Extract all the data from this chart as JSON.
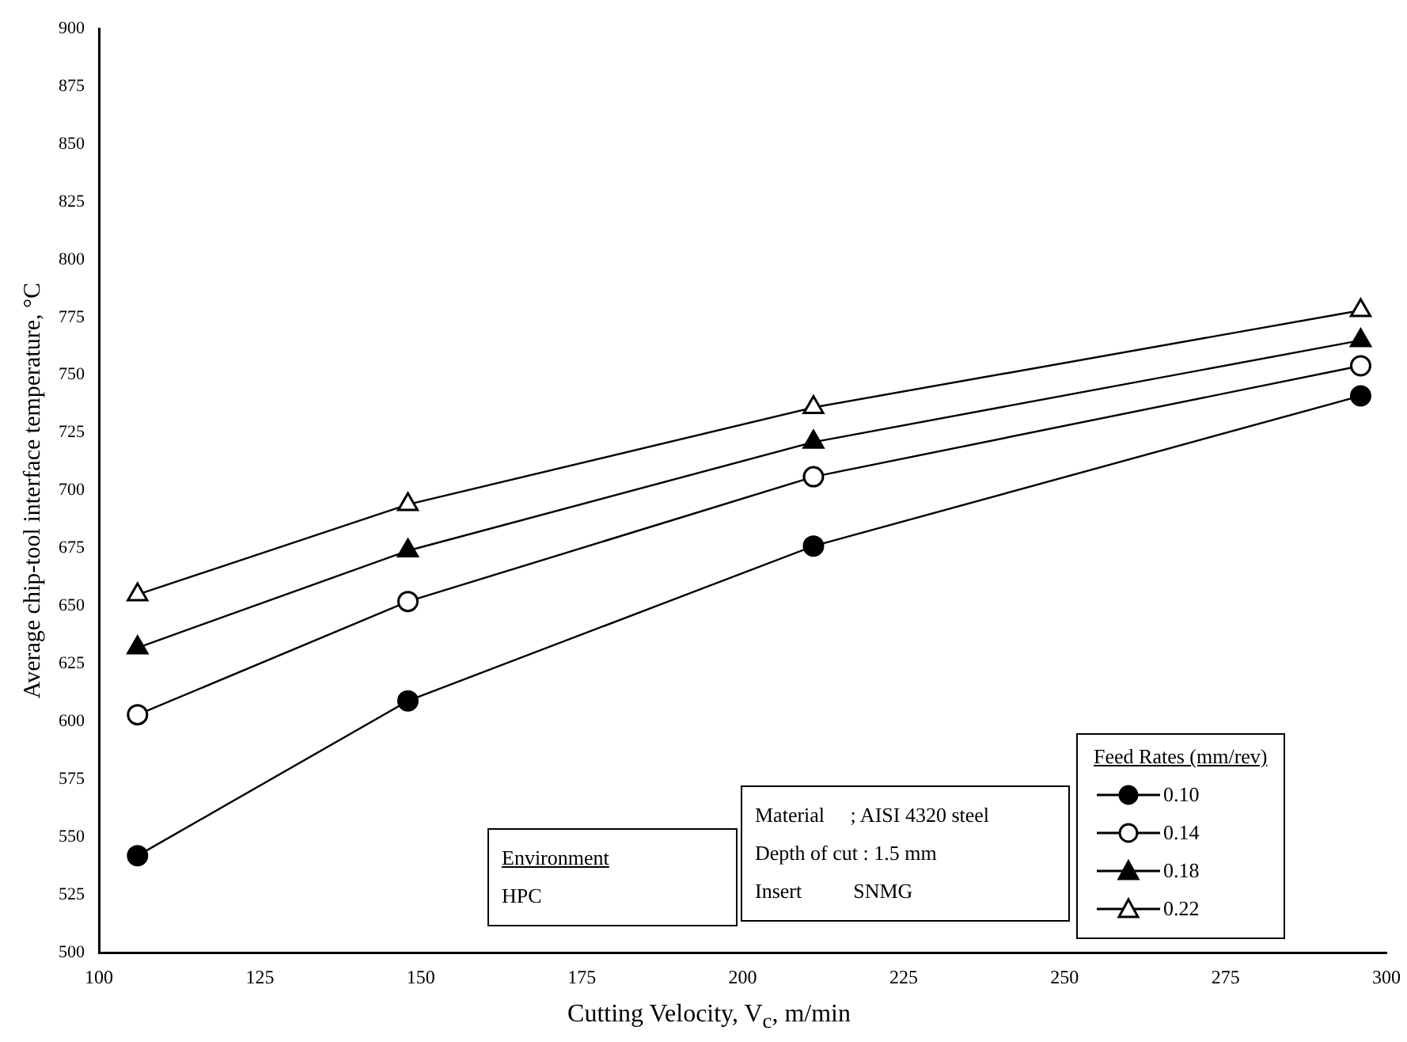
{
  "chart_data": {
    "type": "line",
    "xlabel": "Cutting Velocity, V$_{c}$, m/min",
    "ylabel": "Average chip-tool interface temperature, °C",
    "legend_title": "Feed Rates (mm/rev)",
    "legend": "bottom right",
    "grid": false,
    "line_style": "solid",
    "x": [
      106,
      148,
      211,
      296
    ],
    "xlim": [
      100,
      300
    ],
    "xticks": [
      100,
      125,
      150,
      175,
      200,
      225,
      250,
      275,
      300
    ],
    "ylim": [
      500,
      900
    ],
    "yticks": [
      500,
      525,
      550,
      575,
      600,
      625,
      650,
      675,
      700,
      725,
      750,
      775,
      800,
      825,
      850,
      875,
      900
    ],
    "series": [
      {
        "name": "0.10",
        "color": "#000000",
        "marker": "circle",
        "values": [
          542,
          609,
          676,
          741
        ]
      },
      {
        "name": "0.14",
        "color": "#000000",
        "marker": "circle-open",
        "values": [
          603,
          652,
          706,
          754
        ]
      },
      {
        "name": "0.18",
        "color": "#000000",
        "marker": "triangle",
        "values": [
          632,
          674,
          721,
          765
        ]
      },
      {
        "name": "0.22",
        "color": "#000000",
        "marker": "triangle-open",
        "values": [
          655,
          694,
          736,
          778
        ]
      }
    ],
    "annotations": [
      "Environment",
      "HPC",
      "Material     ; AISI 4320 steel",
      "Depth of cut : 1.5 mm",
      "Insert          SNMG"
    ]
  }
}
